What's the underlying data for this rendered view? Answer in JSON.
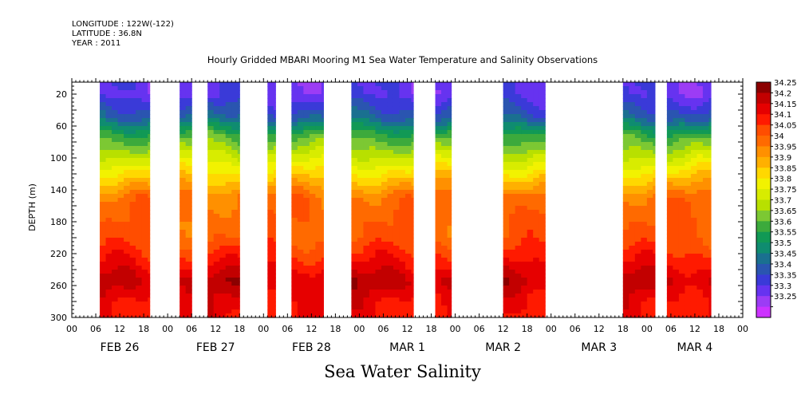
{
  "header": {
    "longitude": "LONGITUDE : 122W(-122)",
    "latitude": "LATITUDE : 36.8N",
    "year": "YEAR : 2011"
  },
  "title": "Hourly Gridded MBARI Mooring M1 Sea Water Temperature and Salinity Observations",
  "bottom_title": "Sea Water Salinity",
  "chart_data": {
    "type": "heatmap",
    "title": "Hourly Gridded MBARI Mooring M1 Sea Water Temperature and Salinity Observations",
    "ylabel": "DEPTH (m)",
    "xlabel": "",
    "x_unit": "hours from 2011-02-26 00:00",
    "xlim": [
      0,
      168
    ],
    "ylim": [
      300,
      5
    ],
    "y_reversed": true,
    "y_ticks": [
      20,
      60,
      100,
      140,
      180,
      220,
      260,
      300
    ],
    "x_hour_ticks": [
      "00",
      "06",
      "12",
      "18",
      "00",
      "06",
      "12",
      "18",
      "00",
      "06",
      "12",
      "18",
      "00",
      "06",
      "12",
      "18",
      "00",
      "06",
      "12",
      "18",
      "00",
      "06",
      "12",
      "18",
      "00",
      "06",
      "12",
      "18",
      "00"
    ],
    "x_day_labels": [
      "FEB 26",
      "FEB 27",
      "FEB 28",
      "MAR  1",
      "MAR  2",
      "MAR  3",
      "MAR  4"
    ],
    "colorbar": {
      "levels": [
        "34.25",
        "34.2",
        "34.15",
        "34.1",
        "34.05",
        "34",
        "33.95",
        "33.9",
        "33.85",
        "33.8",
        "33.75",
        "33.7",
        "33.65",
        "33.6",
        "33.55",
        "33.5",
        "33.45",
        "33.4",
        "33.35",
        "33.3",
        "33.25"
      ],
      "colors": [
        "#8b0000",
        "#c20000",
        "#e60000",
        "#ff1a00",
        "#ff4d00",
        "#ff6a00",
        "#ff9000",
        "#ffb000",
        "#ffd800",
        "#f2f200",
        "#d8ec00",
        "#b8e000",
        "#7cc833",
        "#3caa3c",
        "#119955",
        "#0f8c70",
        "#1a7090",
        "#2a55b0",
        "#3a3ad8",
        "#6633f0",
        "#9c3cf5",
        "#cc33ff"
      ]
    },
    "data_segments_hours": [
      [
        7,
        19.5
      ],
      [
        27,
        30
      ],
      [
        34,
        42
      ],
      [
        49,
        51
      ],
      [
        55,
        63
      ],
      [
        70,
        85.5
      ],
      [
        91,
        95
      ],
      [
        108,
        118.5
      ],
      [
        138,
        146
      ],
      [
        149,
        160
      ]
    ],
    "depth_profile_typical": [
      {
        "depth": 20,
        "salinity": 33.33
      },
      {
        "depth": 50,
        "salinity": 33.45
      },
      {
        "depth": 70,
        "salinity": 33.62
      },
      {
        "depth": 90,
        "salinity": 33.72
      },
      {
        "depth": 110,
        "salinity": 33.82
      },
      {
        "depth": 130,
        "salinity": 33.92
      },
      {
        "depth": 150,
        "salinity": 34.02
      },
      {
        "depth": 200,
        "salinity": 34.05
      },
      {
        "depth": 225,
        "salinity": 34.12
      },
      {
        "depth": 240,
        "salinity": 34.17
      },
      {
        "depth": 255,
        "salinity": 34.22
      },
      {
        "depth": 275,
        "salinity": 34.17
      },
      {
        "depth": 300,
        "salinity": 34.15
      }
    ]
  }
}
